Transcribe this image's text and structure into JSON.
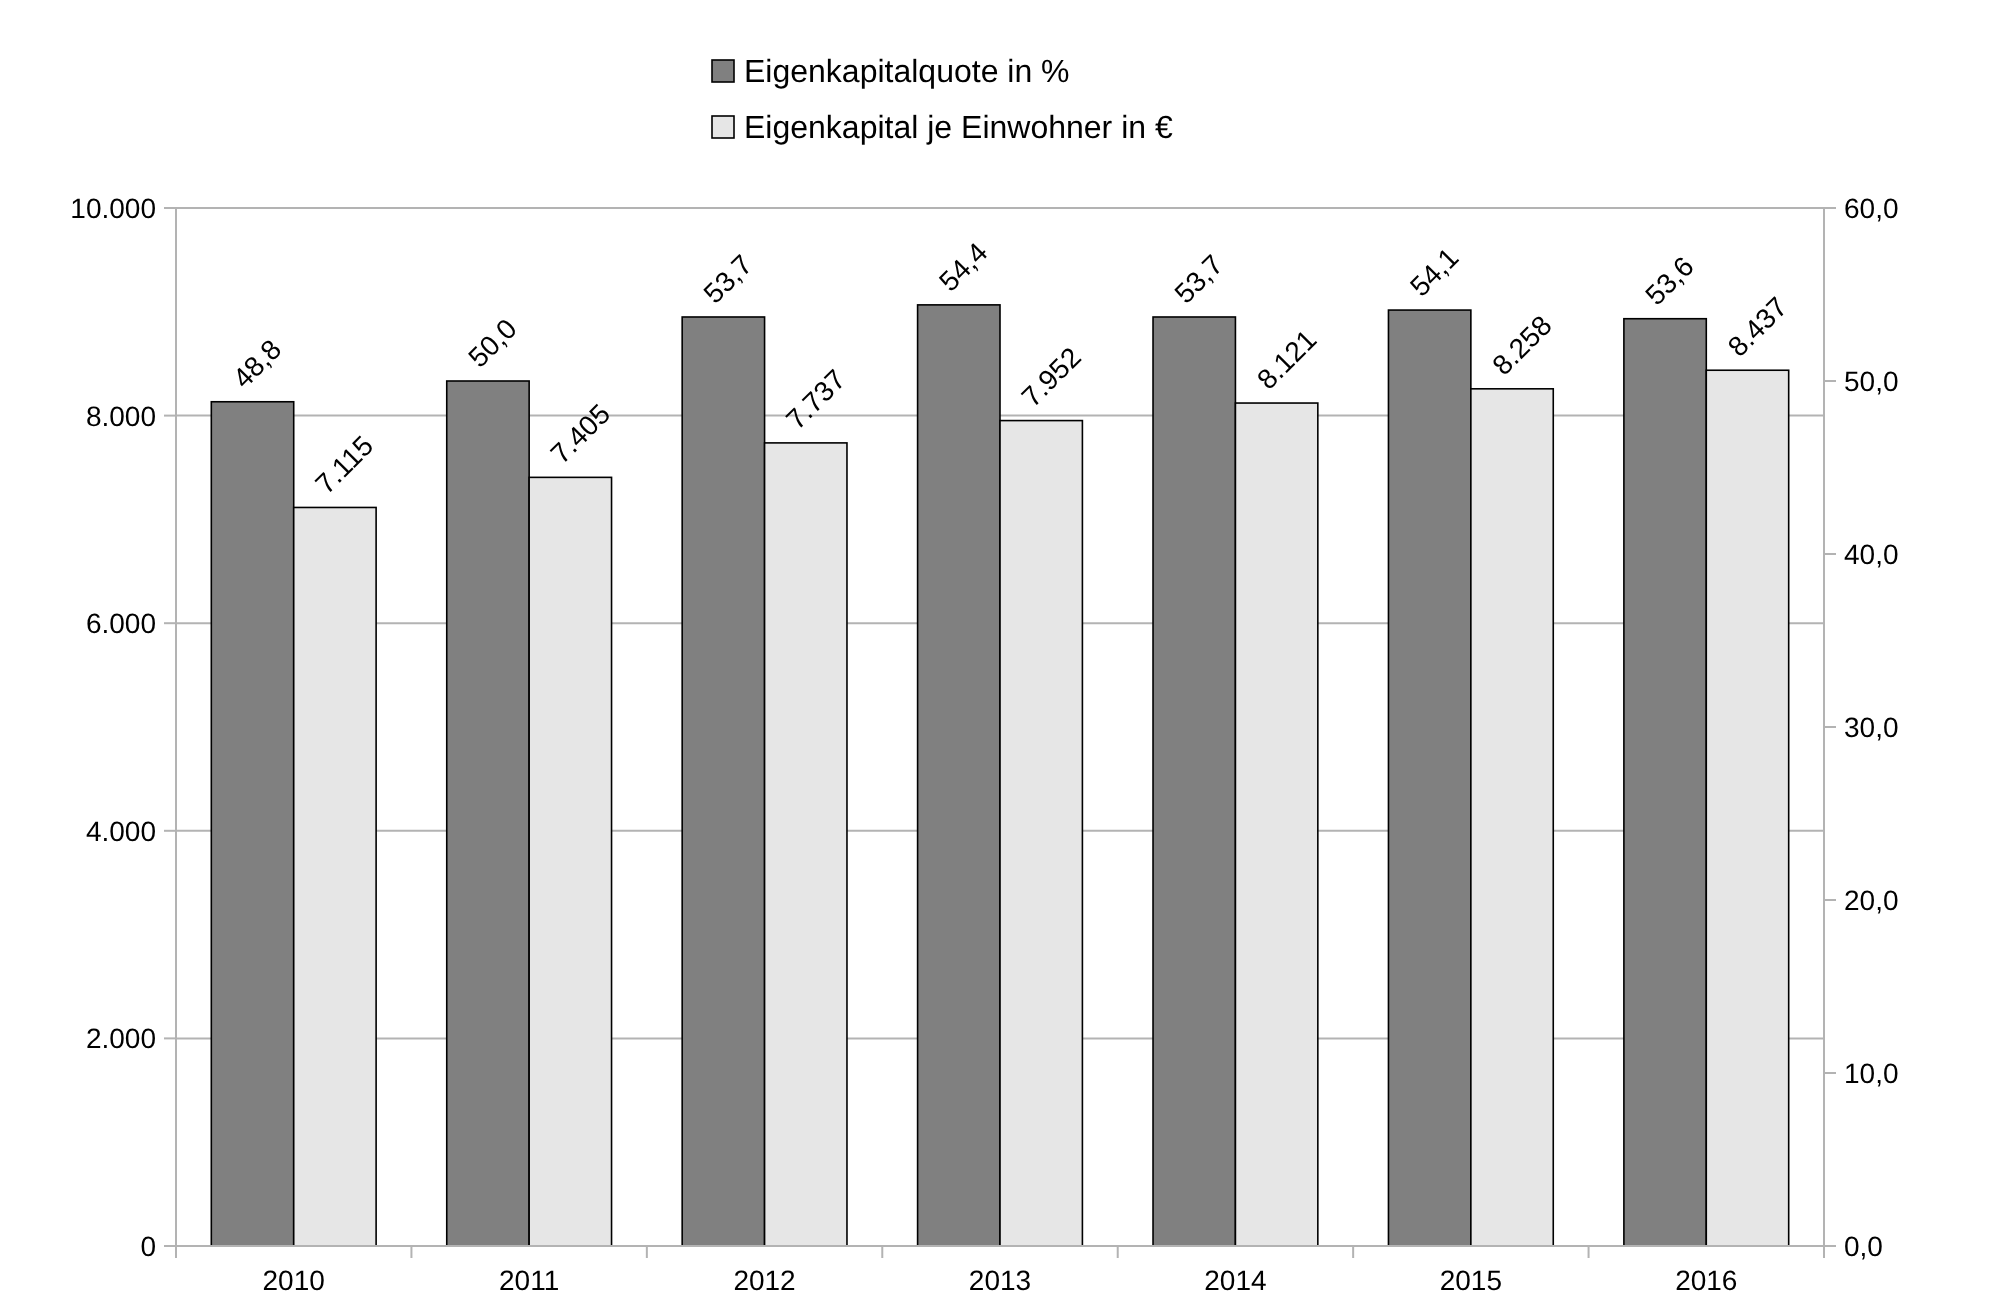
{
  "chart_data": {
    "type": "bar",
    "categories": [
      "2010",
      "2011",
      "2012",
      "2013",
      "2014",
      "2015",
      "2016"
    ],
    "series": [
      {
        "name": "Eigenkapitalquote in %",
        "color": "#808080",
        "axis": "y2",
        "values": [
          48.8,
          50.0,
          53.7,
          54.4,
          53.7,
          54.1,
          53.6
        ],
        "value_labels": [
          "48,8",
          "50,0",
          "53,7",
          "54,4",
          "53,7",
          "54,1",
          "53,6"
        ]
      },
      {
        "name": "Eigenkapital je Einwohner in €",
        "color": "#e6e6e6",
        "values": [
          7115,
          7405,
          7737,
          7952,
          8121,
          8258,
          8437
        ],
        "value_labels": [
          "7.115",
          "7.405",
          "7.737",
          "7.952",
          "8.121",
          "8.258",
          "8.437"
        ]
      }
    ],
    "ylim": [
      0,
      10000
    ],
    "yticks": [
      {
        "value": 0,
        "label": "0"
      },
      {
        "value": 2000,
        "label": "2.000"
      },
      {
        "value": 4000,
        "label": "4.000"
      },
      {
        "value": 6000,
        "label": "6.000"
      },
      {
        "value": 8000,
        "label": "8.000"
      },
      {
        "value": 10000,
        "label": "10.000"
      }
    ],
    "y2lim": [
      0,
      60
    ],
    "y2ticks": [
      {
        "value": 0,
        "label": "0,0"
      },
      {
        "value": 10,
        "label": "10,0"
      },
      {
        "value": 20,
        "label": "20,0"
      },
      {
        "value": 30,
        "label": "30,0"
      },
      {
        "value": 40,
        "label": "40,0"
      },
      {
        "value": 50,
        "label": "50,0"
      },
      {
        "value": 60,
        "label": "60,0"
      }
    ],
    "grid": "y",
    "legend": "top"
  }
}
